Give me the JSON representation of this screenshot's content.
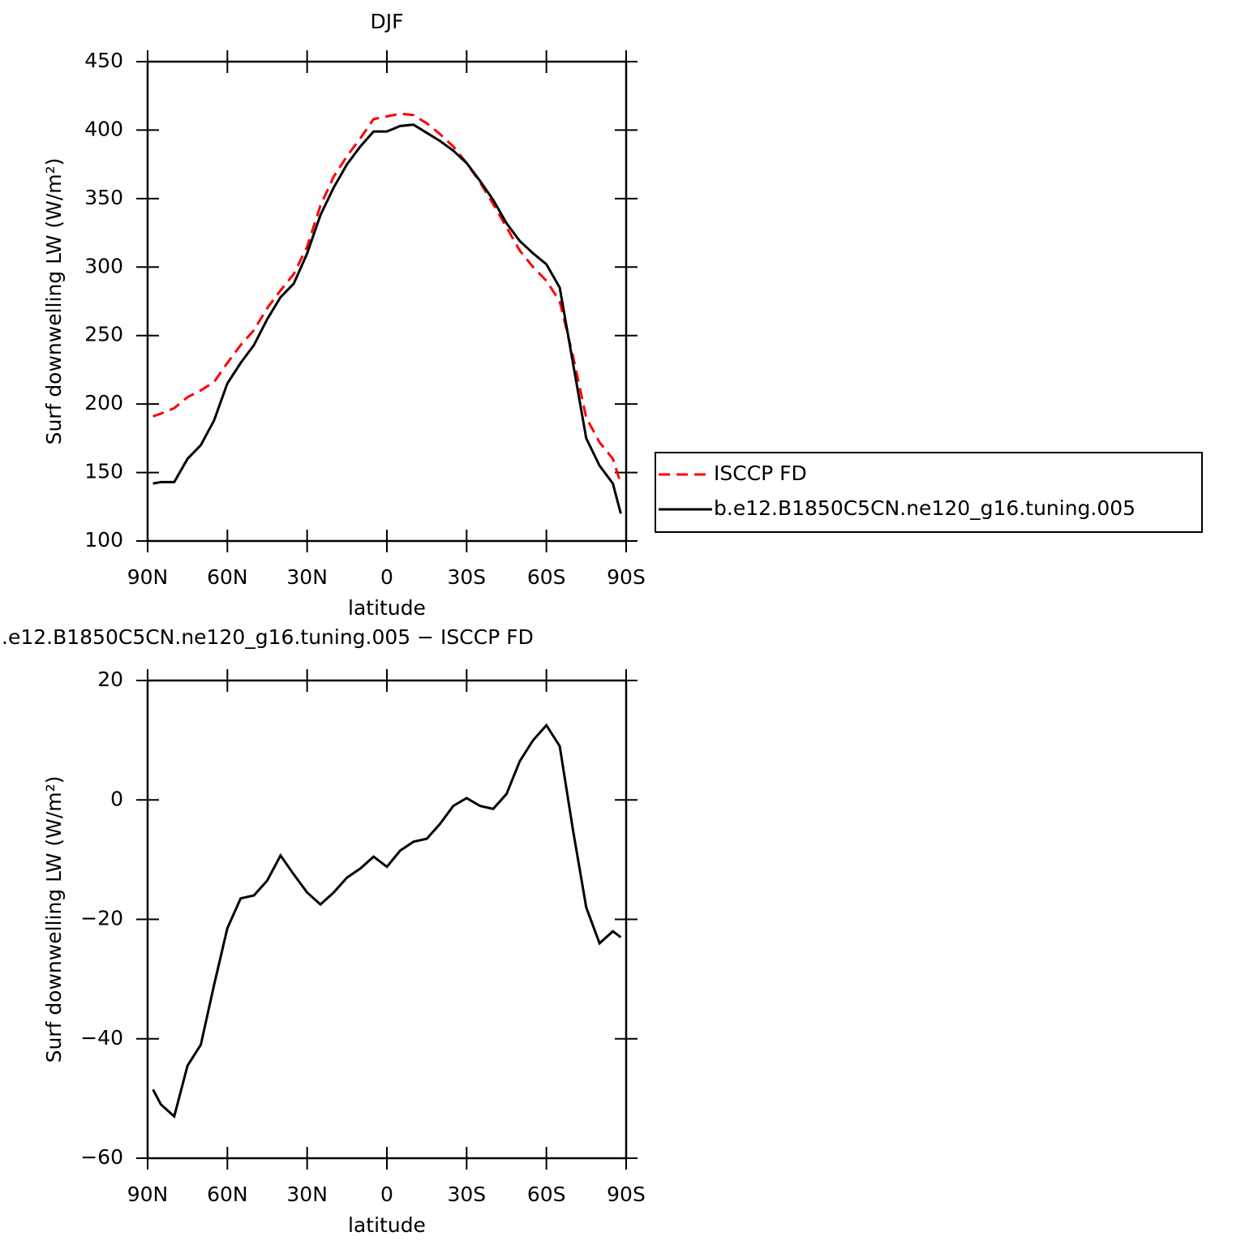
{
  "chart_data": [
    {
      "type": "line",
      "title": "DJF",
      "xlabel": "latitude",
      "ylabel": "Surf downwelling LW (W/m²)",
      "x": [
        88,
        85,
        80,
        75,
        70,
        65,
        60,
        55,
        50,
        45,
        40,
        35,
        30,
        25,
        20,
        15,
        10,
        5,
        0,
        -5,
        -10,
        -15,
        -20,
        -25,
        -30,
        -35,
        -40,
        -45,
        -50,
        -55,
        -60,
        -65,
        -70,
        -75,
        -80,
        -85,
        -88
      ],
      "xlim": [
        90,
        -90
      ],
      "xticks": [
        {
          "value": 90,
          "label": "90N"
        },
        {
          "value": 60,
          "label": "60N"
        },
        {
          "value": 30,
          "label": "30N"
        },
        0,
        {
          "value": -30,
          "label": "30S"
        },
        {
          "value": -60,
          "label": "60S"
        },
        {
          "value": -90,
          "label": "90S"
        }
      ],
      "ylim": [
        100,
        450
      ],
      "yticks": [
        100,
        150,
        200,
        250,
        300,
        350,
        400,
        450
      ],
      "legend": "outside-right",
      "series": [
        {
          "name": "ISCCP FD",
          "color": "#ff0000",
          "dashed": true,
          "values": [
            191,
            193,
            197,
            205,
            210,
            216,
            230,
            243,
            254,
            270,
            283,
            295,
            315,
            345,
            366,
            381,
            394,
            408,
            410,
            412,
            411,
            405,
            397,
            388,
            376,
            362,
            346,
            329,
            312,
            300,
            290,
            275,
            235,
            190,
            172,
            160,
            142
          ]
        },
        {
          "name": "b.e12.B1850C5CN.ne120_g16.tuning.005",
          "color": "#000000",
          "dashed": false,
          "values": [
            142,
            143,
            143,
            160,
            170,
            188,
            215,
            230,
            243,
            262,
            278,
            288,
            310,
            338,
            358,
            375,
            388,
            399,
            399,
            403,
            404,
            398,
            392,
            385,
            376,
            363,
            349,
            332,
            319,
            310,
            302,
            285,
            230,
            175,
            155,
            142,
            120
          ]
        }
      ]
    },
    {
      "type": "line",
      "title": ".e12.B1850C5CN.ne120_g16.tuning.005 − ISCCP FD",
      "xlabel": "latitude",
      "ylabel": "Surf downwelling LW (W/m²)",
      "x": [
        88,
        85,
        80,
        75,
        70,
        65,
        60,
        55,
        50,
        45,
        40,
        35,
        30,
        25,
        20,
        15,
        10,
        5,
        0,
        -5,
        -10,
        -15,
        -20,
        -25,
        -30,
        -35,
        -40,
        -45,
        -50,
        -55,
        -60,
        -65,
        -70,
        -75,
        -80,
        -85,
        -88
      ],
      "xlim": [
        90,
        -90
      ],
      "xticks": [
        {
          "value": 90,
          "label": "90N"
        },
        {
          "value": 60,
          "label": "60N"
        },
        {
          "value": 30,
          "label": "30N"
        },
        0,
        {
          "value": -30,
          "label": "30S"
        },
        {
          "value": -60,
          "label": "60S"
        },
        {
          "value": -90,
          "label": "90S"
        }
      ],
      "ylim": [
        -60,
        20
      ],
      "yticks": [
        {
          "value": -60,
          "label": "−60"
        },
        {
          "value": -40,
          "label": "−40"
        },
        {
          "value": -20,
          "label": "−20"
        },
        0,
        20
      ],
      "series": [
        {
          "color": "#000000",
          "dashed": false,
          "values": [
            -48.5,
            -51,
            -53,
            -44.5,
            -41,
            -31,
            -21.5,
            -16.5,
            -16,
            -13.5,
            -9.3,
            -12.5,
            -15.5,
            -17.5,
            -15.5,
            -13,
            -11.5,
            -9.5,
            -11.2,
            -8.5,
            -7,
            -6.5,
            -4,
            -1,
            0.3,
            -1,
            -1.5,
            1,
            6.5,
            10,
            12.5,
            9,
            -5,
            -18,
            -24,
            -22,
            -23
          ]
        }
      ]
    }
  ]
}
